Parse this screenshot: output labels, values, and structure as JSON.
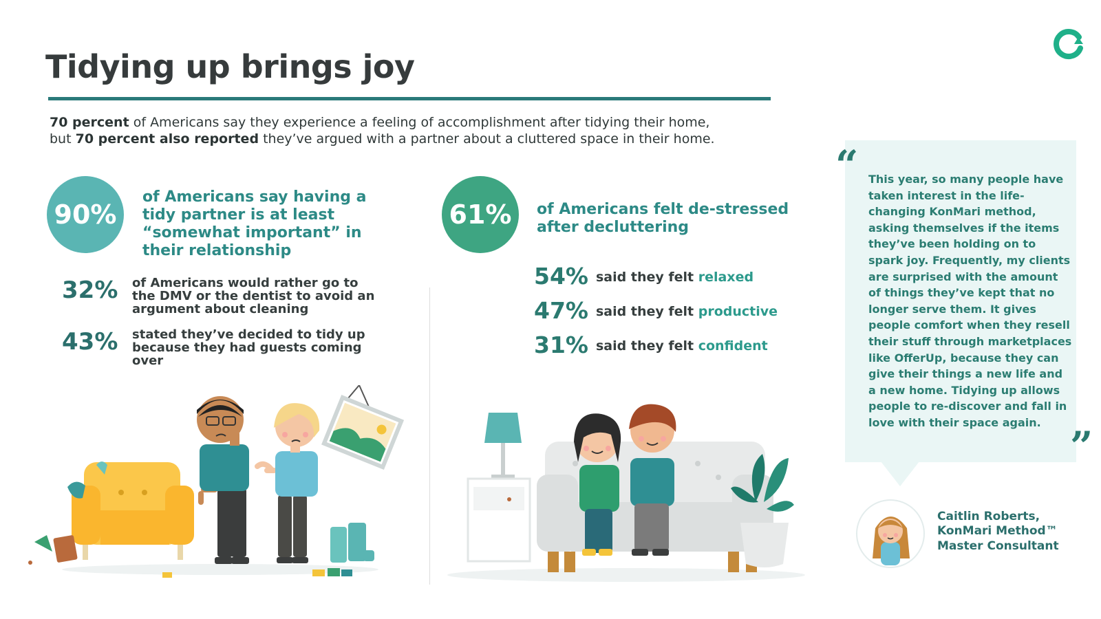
{
  "header": {
    "title": "Tidying up brings joy"
  },
  "intro": {
    "bold1": "70 percent",
    "text1": " of Americans say they experience a feeling of accomplishment after tidying their home,",
    "text2a": "but ",
    "bold2": "70 percent also reported",
    "text2b": " they’ve argued with a partner about a cluttered space in their home."
  },
  "left_section": {
    "main_stat": {
      "value": "90%",
      "text": "of Americans say having a tidy partner is at least “somewhat important” in their relationship"
    },
    "stats": [
      {
        "value": "32%",
        "text": "of Americans would rather go to the DMV or the dentist to avoid an argument about cleaning"
      },
      {
        "value": "43%",
        "text": "stated they’ve decided to tidy up because they had guests coming over"
      }
    ]
  },
  "right_section": {
    "main_stat": {
      "value": "61%",
      "text": "of Americans felt de-stressed after decluttering"
    },
    "felt": [
      {
        "value": "54%",
        "prefix": "said they felt ",
        "word": "relaxed"
      },
      {
        "value": "47%",
        "prefix": "said they felt ",
        "word": "productive"
      },
      {
        "value": "31%",
        "prefix": "said they felt ",
        "word": "confident"
      }
    ]
  },
  "quote": {
    "open_mark": "“",
    "close_mark": "”",
    "text": "This year, so many people have taken interest in the life-changing KonMari method, asking themselves if the items they’ve been holding on to spark joy. Frequently, my clients are surprised with the amount of things they’ve kept that no longer serve them. It gives people comfort when they resell their stuff through marketplaces like OfferUp, because they can give their things a new life and a new home. Tidying up allows people to re-discover and fall in love with their space again.",
    "author_name": "Caitlin Roberts,",
    "author_title1": "KonMari Method™",
    "author_title2": "Master Consultant"
  },
  "colors": {
    "teal_dark": "#2a7a7a",
    "teal_circle": "#5ab5b3",
    "green_circle": "#3ea582",
    "quote_bg": "#eaf6f5"
  },
  "icons": [
    "offerup-logo-icon",
    "arguing-couple-illustration",
    "relaxed-couple-illustration",
    "consultant-avatar"
  ]
}
